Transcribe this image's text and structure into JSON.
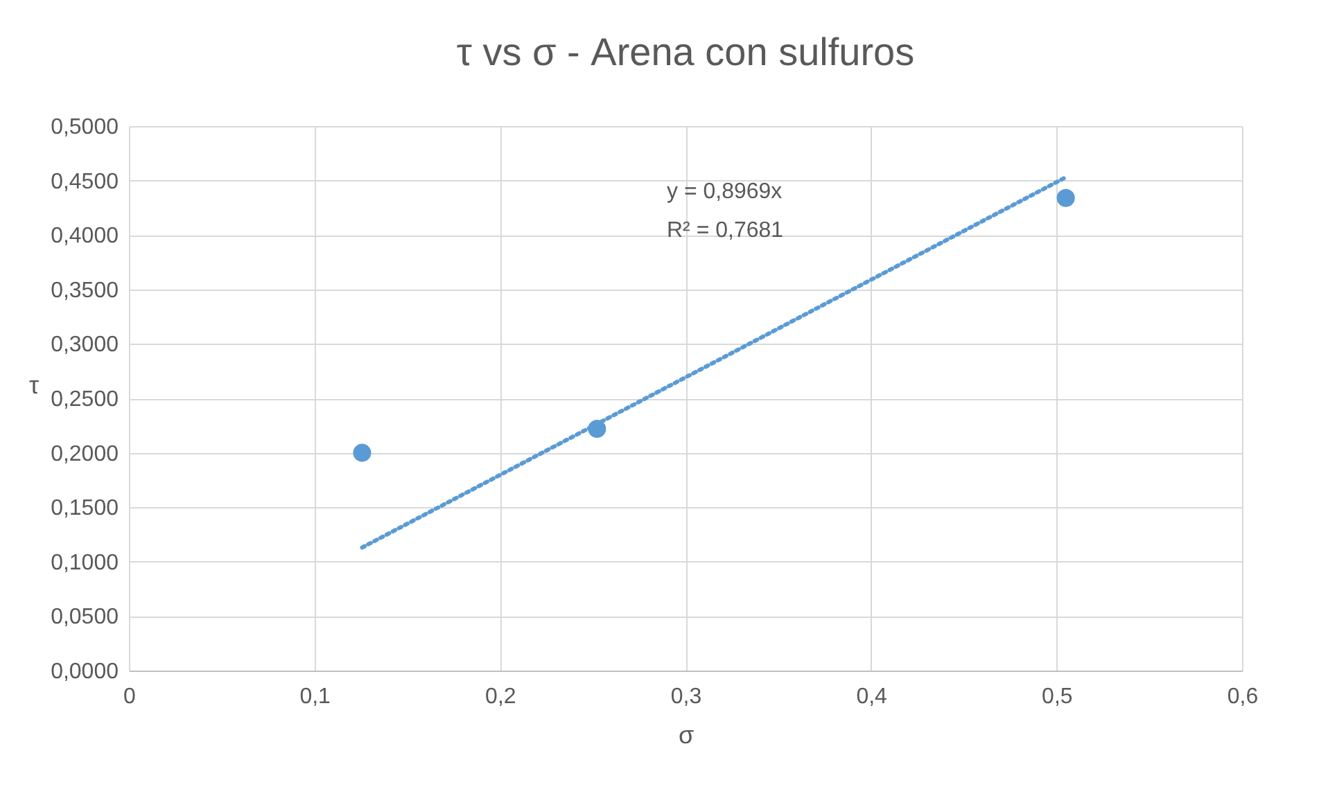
{
  "chart_data": {
    "type": "scatter",
    "title": "τ vs σ - Arena con sulfuros",
    "xlabel": "σ",
    "ylabel": "τ",
    "series": [
      {
        "color": "#5b9bd5",
        "marker": "circle",
        "x": [
          0.1257,
          0.2523,
          0.505
        ],
        "values": [
          0.2,
          0.222,
          0.434
        ]
      },
      {
        "type": "line",
        "color": "#5b9bd5",
        "marker": "none",
        "line_style": "dotted",
        "x": [
          0.1257,
          0.505
        ],
        "values": [
          0.113,
          0.453
        ]
      }
    ],
    "annotations": [
      "y = 0,8969x",
      "R² = 0,7681"
    ],
    "xlim": [
      0,
      0.6
    ],
    "ylim": [
      0,
      0.5
    ],
    "xticks": [
      0,
      {
        "value": 0.1,
        "label": "0,1"
      },
      {
        "value": 0.2,
        "label": "0,2"
      },
      {
        "value": 0.3,
        "label": "0,3"
      },
      {
        "value": 0.4,
        "label": "0,4"
      },
      {
        "value": 0.5,
        "label": "0,5"
      },
      {
        "value": 0.6,
        "label": "0,6"
      }
    ],
    "yticks": [
      {
        "value": 0,
        "label": "0,0000"
      },
      {
        "value": 0.05,
        "label": "0,0500"
      },
      {
        "value": 0.1,
        "label": "0,1000"
      },
      {
        "value": 0.15,
        "label": "0,1500"
      },
      {
        "value": 0.2,
        "label": "0,2000"
      },
      {
        "value": 0.25,
        "label": "0,2500"
      },
      {
        "value": 0.3,
        "label": "0,3000"
      },
      {
        "value": 0.35,
        "label": "0,3500"
      },
      {
        "value": 0.4,
        "label": "0,4000"
      },
      {
        "value": 0.45,
        "label": "0,4500"
      },
      {
        "value": 0.5,
        "label": "0,5000"
      }
    ],
    "grid": true
  }
}
